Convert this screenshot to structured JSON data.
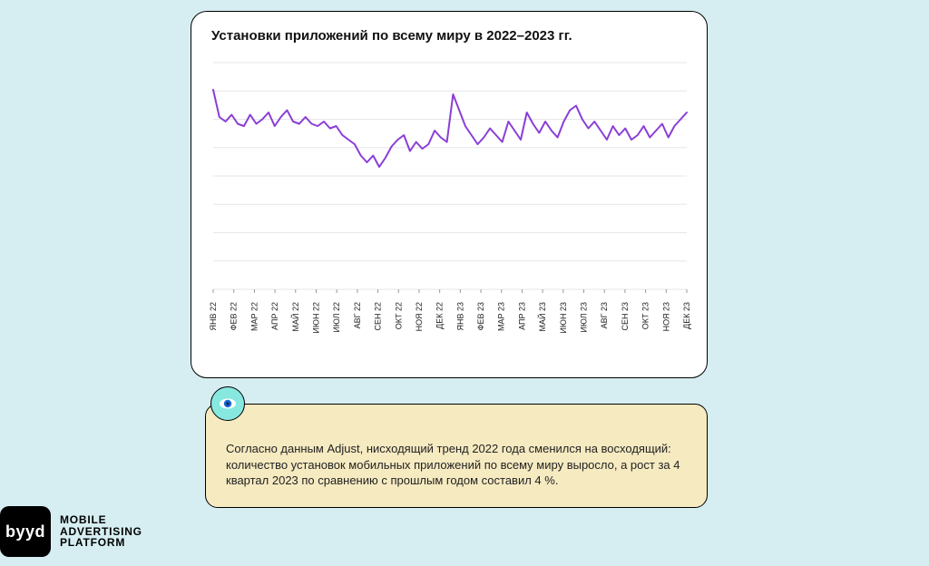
{
  "page": {
    "background_color": "#d6eef2"
  },
  "chart": {
    "type": "line",
    "title": "Установки приложений по всему миру в 2022–2023 гг.",
    "title_fontsize": 15,
    "card": {
      "background_color": "#ffffff",
      "border_color": "#000000",
      "border_radius": 18
    },
    "line_color": "#8a3ed6",
    "line_width": 2,
    "grid_color": "#e6e6e6",
    "grid_y_lines": [
      0,
      0.125,
      0.25,
      0.375,
      0.5,
      0.625,
      0.75,
      0.875,
      1.0
    ],
    "ylim": [
      0,
      100
    ],
    "x_labels": [
      "ЯНВ 22",
      "ФЕВ 22",
      "МАР 22",
      "АПР 22",
      "МАЙ 22",
      "ИЮН 22",
      "ИЮЛ 22",
      "АВГ 22",
      "СЕН 22",
      "ОКТ 22",
      "НОЯ 22",
      "ДЕК 22",
      "ЯНВ 23",
      "ФЕВ 23",
      "МАР 23",
      "АПР 23",
      "МАЙ 23",
      "ИЮН 23",
      "ИЮЛ 23",
      "АВГ 23",
      "СЕН 23",
      "ОКТ 23",
      "НОЯ 23",
      "ДЕК 23"
    ],
    "x_label_fontsize": 9,
    "values": [
      88,
      76,
      74,
      77,
      73,
      72,
      77,
      73,
      75,
      78,
      72,
      76,
      79,
      74,
      73,
      76,
      73,
      72,
      74,
      71,
      72,
      68,
      66,
      64,
      59,
      56,
      59,
      54,
      58,
      63,
      66,
      68,
      61,
      65,
      62,
      64,
      70,
      67,
      65,
      86,
      79,
      72,
      68,
      64,
      67,
      71,
      68,
      65,
      74,
      70,
      66,
      78,
      73,
      69,
      74,
      70,
      67,
      74,
      79,
      81,
      75,
      71,
      74,
      70,
      66,
      72,
      68,
      71,
      66,
      68,
      72,
      67,
      70,
      73,
      67,
      72,
      75,
      78
    ]
  },
  "callout": {
    "background_color": "#f6eac1",
    "border_color": "#000000",
    "text": "Согласно данным Adjust, нисходящий тренд 2022 года сменился на восходящий: количество установок мобильных приложений по всему миру выросло, а рост за 4 квартал 2023 по сравнению с прошлым годом составил 4 %.",
    "text_fontsize": 13
  },
  "eye_badge": {
    "background_color": "#87e8e0",
    "border_color": "#000000",
    "pupil_color": "#1a6ad6"
  },
  "logo": {
    "mark": "byyd",
    "line1": "MOBILE",
    "line2": "ADVERTISING",
    "line3": "PLATFORM"
  }
}
